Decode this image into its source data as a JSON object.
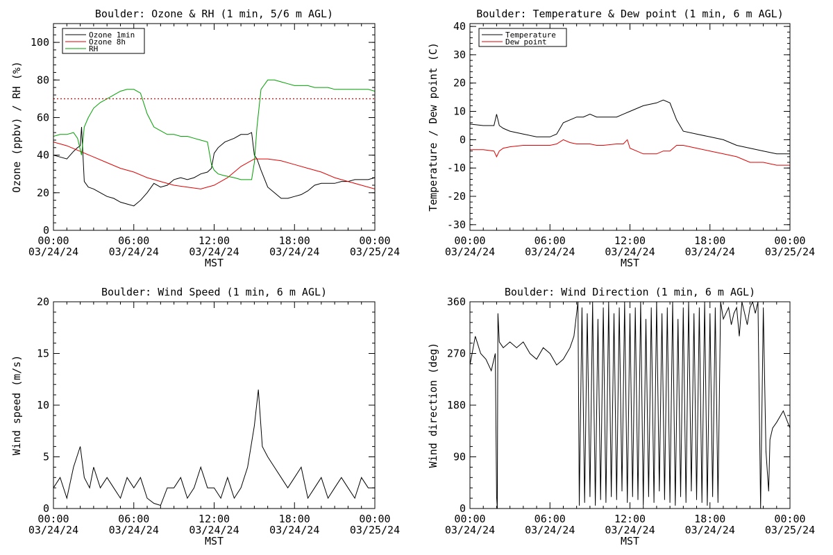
{
  "page": {
    "background": "#ffffff"
  },
  "chart_data": [
    {
      "type": "line",
      "title": "Boulder: Ozone & RH (1 min, 5/6 m AGL)",
      "xlabel": "MST",
      "ylabel": "Ozone (ppbv) / RH (%)",
      "ylim": [
        0,
        110
      ],
      "yticks": [
        0,
        20,
        40,
        60,
        80,
        100
      ],
      "xlim": [
        0,
        24
      ],
      "xticks": [
        {
          "time": "00:00",
          "date": "03/24/24"
        },
        {
          "time": "06:00",
          "date": "03/24/24"
        },
        {
          "time": "12:00",
          "date": "03/24/24"
        },
        {
          "time": "18:00",
          "date": "03/24/24"
        },
        {
          "time": "00:00",
          "date": "03/25/24"
        }
      ],
      "x_units": "hours",
      "grid": false,
      "legend_position": "top-left",
      "threshold": {
        "y": 70,
        "color": "#e00000",
        "style": "dotted"
      },
      "series": [
        {
          "name": "Ozone 1min",
          "color": "#000000",
          "x": [
            0,
            0.5,
            1,
            1.5,
            1.8,
            2,
            2.1,
            2.3,
            2.6,
            3,
            3.5,
            4,
            4.5,
            5,
            5.5,
            6,
            6.5,
            7,
            7.5,
            8,
            8.5,
            9,
            9.5,
            10,
            10.5,
            11,
            11.5,
            11.8,
            12,
            12.3,
            12.8,
            13.5,
            14,
            14.5,
            14.8,
            15,
            15.2,
            15.5,
            16,
            16.5,
            17,
            17.5,
            18,
            18.5,
            19,
            19.5,
            20,
            20.5,
            21,
            21.5,
            22,
            22.5,
            23,
            23.5,
            24
          ],
          "values": [
            40,
            39,
            38,
            42,
            44,
            45,
            55,
            26,
            23,
            22,
            20,
            18,
            17,
            15,
            14,
            13,
            16,
            20,
            25,
            23,
            24,
            27,
            28,
            27,
            28,
            30,
            31,
            33,
            41,
            44,
            47,
            49,
            51,
            51,
            52,
            40,
            38,
            32,
            23,
            20,
            17,
            17,
            18,
            19,
            21,
            24,
            25,
            25,
            25,
            26,
            26,
            27,
            27,
            27,
            28
          ]
        },
        {
          "name": "Ozone 8h",
          "color": "#e00000",
          "x": [
            0,
            1,
            2,
            3,
            4,
            5,
            6,
            7,
            8,
            9,
            10,
            11,
            12,
            13,
            14,
            15,
            16,
            17,
            18,
            19,
            20,
            21,
            22,
            23,
            24
          ],
          "values": [
            47,
            45,
            42,
            39,
            36,
            33,
            31,
            28,
            26,
            24,
            23,
            22,
            24,
            28,
            34,
            38,
            38,
            37,
            35,
            33,
            31,
            28,
            26,
            24,
            22
          ]
        },
        {
          "name": "RH",
          "color": "#00a000",
          "x": [
            0,
            0.5,
            1,
            1.5,
            1.8,
            2,
            2.1,
            2.3,
            2.6,
            3,
            3.5,
            4,
            4.5,
            5,
            5.5,
            6,
            6.5,
            7,
            7.5,
            8,
            8.5,
            9,
            9.5,
            10,
            10.5,
            11,
            11.5,
            11.8,
            12,
            12.3,
            12.8,
            13.5,
            14,
            14.5,
            14.8,
            15,
            15.2,
            15.5,
            16,
            16.5,
            17,
            17.5,
            18,
            18.5,
            19,
            19.5,
            20,
            20.5,
            21,
            21.5,
            22,
            22.5,
            23,
            23.5,
            24
          ],
          "values": [
            50,
            51,
            51,
            52,
            49,
            43,
            40,
            55,
            60,
            65,
            68,
            70,
            72,
            74,
            75,
            75,
            73,
            62,
            55,
            53,
            51,
            51,
            50,
            50,
            49,
            48,
            47,
            35,
            32,
            30,
            29,
            28,
            27,
            27,
            27,
            36,
            55,
            75,
            80,
            80,
            79,
            78,
            77,
            77,
            77,
            76,
            76,
            76,
            75,
            75,
            75,
            75,
            75,
            75,
            74
          ]
        }
      ]
    },
    {
      "type": "line",
      "title": "Boulder: Temperature & Dew point (1 min, 6 m AGL)",
      "xlabel": "MST",
      "ylabel": "Temperature / Dew point (C)",
      "ylim": [
        -32,
        41
      ],
      "yticks": [
        -30,
        -20,
        -10,
        0,
        10,
        20,
        30,
        40
      ],
      "xlim": [
        0,
        24
      ],
      "xticks": [
        {
          "time": "00:00",
          "date": "03/24/24"
        },
        {
          "time": "06:00",
          "date": "03/24/24"
        },
        {
          "time": "12:00",
          "date": "03/24/24"
        },
        {
          "time": "18:00",
          "date": "03/24/24"
        },
        {
          "time": "00:00",
          "date": "03/25/24"
        }
      ],
      "x_units": "hours",
      "grid": false,
      "legend_position": "top-left",
      "series": [
        {
          "name": "Temperature",
          "color": "#000000",
          "x": [
            0,
            1,
            1.8,
            2,
            2.2,
            2.5,
            3,
            4,
            5,
            6,
            6.5,
            7,
            7.5,
            8,
            8.5,
            9,
            9.5,
            10,
            11,
            11.5,
            12,
            13,
            14,
            14.5,
            15,
            15.5,
            16,
            17,
            18,
            19,
            20,
            21,
            22,
            23,
            24
          ],
          "values": [
            5.5,
            5,
            5,
            9,
            5,
            4,
            3,
            2,
            1,
            1,
            2,
            6,
            7,
            8,
            8,
            9,
            8,
            8,
            8,
            9,
            10,
            12,
            13,
            14,
            13,
            7,
            3,
            2,
            1,
            0,
            -2,
            -3,
            -4,
            -5,
            -5
          ]
        },
        {
          "name": "Dew point",
          "color": "#e00000",
          "x": [
            0,
            1,
            1.8,
            2,
            2.2,
            2.5,
            3,
            4,
            5,
            6,
            6.5,
            7,
            7.5,
            8,
            8.5,
            9,
            9.5,
            10,
            11,
            11.5,
            11.8,
            12,
            12.5,
            13,
            14,
            14.5,
            15,
            15.5,
            16,
            17,
            18,
            19,
            20,
            21,
            22,
            23,
            24
          ],
          "values": [
            -3.5,
            -3.5,
            -4,
            -6,
            -4,
            -3,
            -2.5,
            -2,
            -2,
            -2,
            -1.5,
            0,
            -1,
            -1.5,
            -1.5,
            -1.5,
            -2,
            -2,
            -1.5,
            -1.5,
            0,
            -3,
            -4,
            -5,
            -5,
            -4,
            -4,
            -2,
            -2,
            -3,
            -4,
            -5,
            -6,
            -8,
            -8,
            -9,
            -9
          ]
        }
      ]
    },
    {
      "type": "line",
      "title": "Boulder: Wind Speed (1 min, 6 m AGL)",
      "xlabel": "MST",
      "ylabel": "Wind speed (m/s)",
      "ylim": [
        0,
        20
      ],
      "yticks": [
        0,
        5,
        10,
        15,
        20
      ],
      "xlim": [
        0,
        24
      ],
      "xticks": [
        {
          "time": "00:00",
          "date": "03/24/24"
        },
        {
          "time": "06:00",
          "date": "03/24/24"
        },
        {
          "time": "12:00",
          "date": "03/24/24"
        },
        {
          "time": "18:00",
          "date": "03/24/24"
        },
        {
          "time": "00:00",
          "date": "03/25/24"
        }
      ],
      "x_units": "hours",
      "grid": false,
      "series": [
        {
          "name": "",
          "color": "#000000",
          "x": [
            0,
            0.5,
            1,
            1.5,
            2,
            2.3,
            2.7,
            3,
            3.5,
            4,
            4.5,
            5,
            5.5,
            6,
            6.5,
            7,
            7.5,
            8,
            8.5,
            9,
            9.5,
            10,
            10.5,
            11,
            11.5,
            12,
            12.5,
            13,
            13.5,
            14,
            14.5,
            15,
            15.3,
            15.6,
            16,
            16.5,
            17,
            17.5,
            18,
            18.5,
            19,
            19.5,
            20,
            20.5,
            21,
            21.5,
            22,
            22.5,
            23,
            23.5,
            24
          ],
          "values": [
            2,
            3,
            1,
            4,
            6,
            3,
            2,
            4,
            2,
            3,
            2,
            1,
            3,
            2,
            3,
            1,
            0.5,
            0.3,
            2,
            2,
            3,
            1,
            2,
            4,
            2,
            2,
            1,
            3,
            1,
            2,
            4,
            8,
            11.5,
            6,
            5,
            4,
            3,
            2,
            3,
            4,
            1,
            2,
            3,
            1,
            2,
            3,
            2,
            1,
            3,
            2,
            2
          ]
        }
      ]
    },
    {
      "type": "line",
      "title": "Boulder: Wind Direction (1 min, 6 m AGL)",
      "xlabel": "MST",
      "ylabel": "Wind direction (deg)",
      "ylim": [
        0,
        360
      ],
      "yticks": [
        0,
        90,
        180,
        270,
        360
      ],
      "xlim": [
        0,
        24
      ],
      "xticks": [
        {
          "time": "00:00",
          "date": "03/24/24"
        },
        {
          "time": "06:00",
          "date": "03/24/24"
        },
        {
          "time": "12:00",
          "date": "03/24/24"
        },
        {
          "time": "18:00",
          "date": "03/24/24"
        },
        {
          "time": "00:00",
          "date": "03/25/24"
        }
      ],
      "x_units": "hours",
      "grid": false,
      "series": [
        {
          "name": "",
          "color": "#000000",
          "x": [
            0,
            0.4,
            0.8,
            1.2,
            1.6,
            1.9,
            2.0,
            2.05,
            2.1,
            2.2,
            2.5,
            3,
            3.5,
            4,
            4.5,
            5,
            5.5,
            6,
            6.5,
            7,
            7.5,
            7.8,
            8.1,
            8.2,
            8.4,
            8.6,
            8.8,
            9.0,
            9.2,
            9.4,
            9.6,
            9.8,
            10.0,
            10.2,
            10.4,
            10.6,
            10.8,
            11.0,
            11.2,
            11.4,
            11.6,
            11.8,
            12.0,
            12.2,
            12.4,
            12.6,
            12.8,
            13.0,
            13.2,
            13.4,
            13.6,
            13.8,
            14.0,
            14.2,
            14.4,
            14.6,
            14.8,
            15.0,
            15.2,
            15.4,
            15.6,
            15.8,
            16.0,
            16.2,
            16.4,
            16.6,
            16.8,
            17.0,
            17.2,
            17.4,
            17.6,
            17.8,
            18.0,
            18.2,
            18.4,
            18.6,
            18.8,
            19.0,
            19.2,
            19.4,
            19.6,
            19.8,
            20.0,
            20.2,
            20.4,
            20.6,
            20.8,
            21.0,
            21.2,
            21.4,
            21.6,
            21.8,
            22.0,
            22.2,
            22.4,
            22.5,
            22.7,
            23,
            23.5,
            24
          ],
          "values": [
            250,
            300,
            270,
            260,
            240,
            270,
            20,
            0,
            340,
            290,
            280,
            290,
            280,
            290,
            270,
            260,
            280,
            270,
            250,
            260,
            280,
            300,
            360,
            5,
            350,
            10,
            340,
            20,
            360,
            5,
            330,
            15,
            350,
            10,
            360,
            20,
            340,
            15,
            350,
            30,
            360,
            10,
            340,
            20,
            350,
            15,
            360,
            5,
            330,
            20,
            350,
            10,
            360,
            30,
            340,
            15,
            350,
            10,
            360,
            5,
            330,
            20,
            350,
            10,
            360,
            30,
            340,
            15,
            350,
            10,
            360,
            5,
            340,
            20,
            350,
            10,
            360,
            330,
            340,
            350,
            320,
            340,
            350,
            300,
            360,
            340,
            320,
            350,
            360,
            340,
            360,
            0,
            350,
            100,
            30,
            120,
            140,
            150,
            170,
            140
          ]
        }
      ]
    }
  ]
}
